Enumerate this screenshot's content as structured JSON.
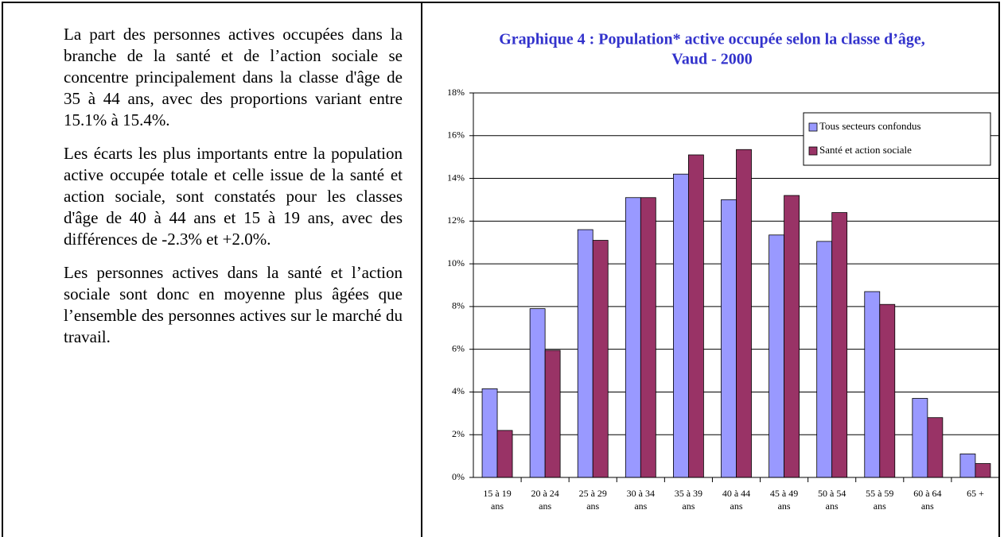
{
  "paragraphs": [
    "La part des personnes actives occupées dans la branche de la santé et de l’action sociale se concentre principalement dans la classe d'âge de 35 à 44 ans, avec des proportions variant entre 15.1% à 15.4%.",
    "Les écarts les plus importants entre la population active occupée totale et celle issue de la santé et action sociale, sont constatés pour les classes d'âge de 40 à 44 ans et 15 à 19 ans, avec des différences de -2.3% et +2.0%.",
    "Les personnes actives dans la santé et l’action sociale sont donc en moyenne plus âgées que l’ensemble des personnes actives sur le marché du travail."
  ],
  "chart_data": {
    "type": "bar",
    "title": [
      "Graphique 4 : Population* active occupée selon la classe d’âge,",
      "Vaud - 2000"
    ],
    "categories": [
      [
        "15 à 19",
        "ans"
      ],
      [
        "20 à 24",
        "ans"
      ],
      [
        "25 à 29",
        "ans"
      ],
      [
        "30 à 34",
        "ans"
      ],
      [
        "35 à 39",
        "ans"
      ],
      [
        "40 à 44",
        "ans"
      ],
      [
        "45 à 49",
        "ans"
      ],
      [
        "50 à 54",
        "ans"
      ],
      [
        "55 à 59",
        "ans"
      ],
      [
        "60 à 64",
        "ans"
      ],
      [
        "65 +"
      ]
    ],
    "series": [
      {
        "name": "Tous secteurs confondus",
        "color": "#9999ff",
        "values": [
          4.15,
          7.9,
          11.6,
          13.1,
          14.2,
          13.0,
          11.35,
          11.05,
          8.7,
          3.7,
          1.1
        ]
      },
      {
        "name": "Santé et action sociale",
        "color": "#993366",
        "values": [
          2.2,
          5.95,
          11.1,
          13.1,
          15.1,
          15.35,
          13.2,
          12.4,
          8.1,
          2.8,
          0.65
        ]
      }
    ],
    "ylim": [
      0,
      18
    ],
    "yticks": [
      {
        "value": 0,
        "label": "0%"
      },
      {
        "value": 2,
        "label": "2%"
      },
      {
        "value": 4,
        "label": "4%"
      },
      {
        "value": 6,
        "label": "6%"
      },
      {
        "value": 8,
        "label": "8%"
      },
      {
        "value": 10,
        "label": "10%"
      },
      {
        "value": 12,
        "label": "12%"
      },
      {
        "value": 14,
        "label": "14%"
      },
      {
        "value": 16,
        "label": "16%"
      },
      {
        "value": 18,
        "label": "18%"
      }
    ],
    "grid": true,
    "legend": "top-right"
  }
}
